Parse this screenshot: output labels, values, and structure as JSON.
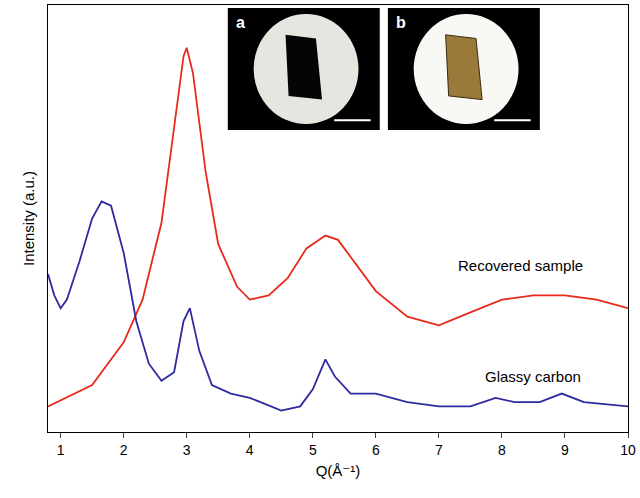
{
  "chart_data": {
    "type": "line",
    "x_label": "Q(Å⁻¹)",
    "y_label": "Intensity (a.u.)",
    "xlim": [
      0.8,
      10
    ],
    "xticks": [
      1,
      2,
      3,
      4,
      5,
      6,
      7,
      8,
      9,
      10
    ],
    "ylim": [
      0,
      100
    ],
    "tick_labels": "x",
    "grid": false,
    "series": [
      {
        "name": "Recovered sample",
        "color": "#e8291c",
        "x": [
          0.8,
          1.5,
          2.0,
          2.3,
          2.6,
          2.8,
          2.95,
          3.0,
          3.1,
          3.3,
          3.5,
          3.8,
          4.0,
          4.3,
          4.6,
          4.9,
          5.2,
          5.4,
          5.7,
          6.0,
          6.5,
          7.0,
          7.5,
          8.0,
          8.5,
          9.0,
          9.5,
          10.0
        ],
        "values": [
          6,
          11,
          21,
          31,
          49,
          72,
          88,
          90,
          84,
          61,
          44,
          34,
          31,
          32,
          36,
          43,
          46,
          45,
          39,
          33,
          27,
          25,
          28,
          31,
          32,
          32,
          31,
          29
        ]
      },
      {
        "name": "Glassy carbon",
        "color": "#2e2aa0",
        "x": [
          0.8,
          0.9,
          1.0,
          1.1,
          1.3,
          1.5,
          1.65,
          1.8,
          2.0,
          2.2,
          2.4,
          2.6,
          2.8,
          2.95,
          3.05,
          3.2,
          3.4,
          3.7,
          4.0,
          4.5,
          4.8,
          5.0,
          5.2,
          5.35,
          5.6,
          6.0,
          6.5,
          7.0,
          7.5,
          7.9,
          8.2,
          8.6,
          8.95,
          9.3,
          10.0
        ],
        "values": [
          37,
          32,
          29,
          31,
          40,
          50,
          54,
          53,
          42,
          26,
          16,
          12,
          14,
          26,
          29,
          19,
          11,
          9,
          8,
          5,
          6,
          10,
          17,
          13,
          9,
          9,
          7,
          6,
          6,
          8,
          7,
          7,
          9,
          7,
          6
        ]
      }
    ],
    "annotations": [
      {
        "text": "Recovered sample",
        "x": 8.3,
        "y": 39
      },
      {
        "text": "Glassy carbon",
        "x": 8.5,
        "y": 13
      }
    ],
    "panels": [
      "a",
      "b"
    ]
  }
}
